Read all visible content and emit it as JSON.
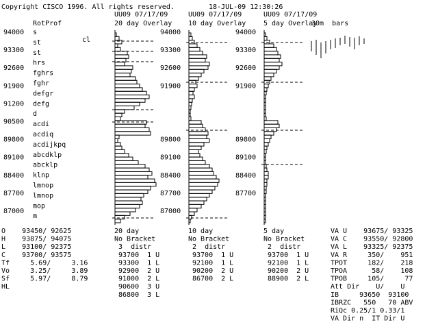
{
  "header": {
    "copyright": "Copyright CISCO 1996. All rights reserved.",
    "datetime": "18-JUL-09 12:30:26"
  },
  "profile": {
    "title": "RotProf",
    "marker": "cl",
    "prices": [
      "94000",
      "93300",
      "92600",
      "91900",
      "91200",
      "90500",
      "89800",
      "89100",
      "88400",
      "87700",
      "87000"
    ],
    "letters": [
      "s",
      "st",
      "st",
      "hrs",
      "fghrs",
      "fghr",
      "defgr",
      "defg",
      "d",
      "acdi",
      "acdiq",
      "acdijkpq",
      "abcdklp",
      "abcklp",
      "klnp",
      "lmnop",
      "lmnop",
      "mop",
      "m"
    ]
  },
  "panels": [
    {
      "contract": "UU09 07/17/09",
      "title": "20 day Overlay",
      "axis": [],
      "bars": [
        2,
        6,
        10,
        4,
        8,
        18,
        20,
        16,
        14,
        26,
        24,
        22,
        30,
        32,
        36,
        40,
        46,
        50,
        44,
        36,
        28,
        14,
        10,
        8,
        46,
        44,
        50,
        52,
        6,
        4,
        8,
        10,
        14,
        20,
        26,
        34,
        44,
        50,
        54,
        48,
        58,
        60,
        52,
        48,
        42,
        38,
        40,
        36,
        30,
        22,
        14,
        8
      ],
      "footer": [
        "20 day",
        "No Bracket",
        " 3  distr",
        "93700  1 U",
        "93300  1 L",
        "92900  2 U",
        "91000  2 L",
        "90600  3 U",
        "86800  3 L"
      ]
    },
    {
      "contract": "UU09 07/17/09",
      "title": "10 day Overlay",
      "axis": [
        "94000",
        "93300",
        "92600",
        "91900",
        "",
        "",
        "89800",
        "89100",
        "88400",
        "87700",
        "87000"
      ],
      "bars": [
        3,
        5,
        8,
        12,
        16,
        20,
        26,
        24,
        30,
        28,
        22,
        18,
        14,
        10,
        12,
        8,
        6,
        8,
        5,
        4,
        3,
        2,
        2,
        3,
        18,
        20,
        24,
        28,
        26,
        30,
        22,
        18,
        14,
        16,
        20,
        24,
        30,
        34,
        36,
        40,
        44,
        42,
        38,
        34,
        30,
        26,
        22,
        18,
        12,
        8,
        4,
        2
      ],
      "footer": [
        "10 day",
        "No Bracket",
        " 2  distr",
        "93700  1 U",
        "92100  1 L",
        "90200  2 U",
        "86700  2 L"
      ]
    },
    {
      "contract": "UU09 07/17/09",
      "title": "5 day Overlay",
      "axis": [
        "94000",
        "93300",
        "92600",
        "91900",
        "",
        "",
        "89800",
        "89100",
        "88400",
        "87700"
      ],
      "bars": [
        2,
        4,
        8,
        14,
        18,
        20,
        24,
        22,
        26,
        22,
        18,
        14,
        10,
        8,
        6,
        4,
        3,
        2,
        2,
        2,
        2,
        2,
        2,
        3,
        20,
        22,
        18,
        14,
        10,
        8,
        6,
        4,
        3,
        2,
        2,
        2,
        3,
        4,
        6,
        6,
        4,
        4,
        3,
        3,
        2,
        2,
        2,
        2,
        2,
        2,
        2,
        2
      ],
      "footer": [
        "5 day",
        "No Bracket",
        " 2  distr",
        "93700  1 U",
        "92100  1 L",
        "90200  2 U",
        "88900  2 L"
      ]
    }
  ],
  "bars_label": "30m  bars",
  "stats": [
    "O    93450/ 92625",
    "H    93875/ 94075",
    "L    93100/ 92375",
    "C    93700/ 93575",
    "Tf     5.69/     3.16",
    "Vo     3.25/     3.89",
    "Sf     5.97/     8.79",
    "HL"
  ],
  "value_area": [
    "VA U    93675/ 93325",
    "VA C    93550/ 92800",
    "VA L    93325/ 92375",
    "VA R     350/    951",
    "TPOT     182/    218",
    "TPOA      58/    108",
    "TPOB     105/     77",
    "Att Dir    U/    U",
    "IB     93650  93100",
    "IBRZC   550   70 ABV",
    "RiQc 0.25/1 0.33/1",
    "VA Dir n  IT Dir U"
  ]
}
